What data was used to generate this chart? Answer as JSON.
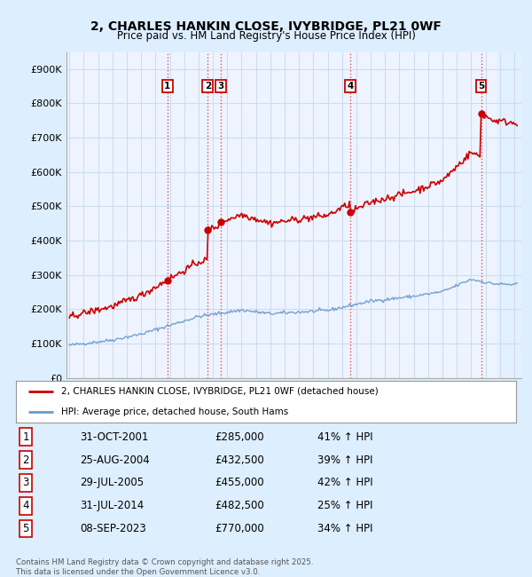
{
  "title": "2, CHARLES HANKIN CLOSE, IVYBRIDGE, PL21 0WF",
  "subtitle": "Price paid vs. HM Land Registry's House Price Index (HPI)",
  "ylim": [
    0,
    950000
  ],
  "yticks": [
    0,
    100000,
    200000,
    300000,
    400000,
    500000,
    600000,
    700000,
    800000,
    900000
  ],
  "ytick_labels": [
    "£0",
    "£100K",
    "£200K",
    "£300K",
    "£400K",
    "£500K",
    "£600K",
    "£700K",
    "£800K",
    "£900K"
  ],
  "xlim_start": 1994.8,
  "xlim_end": 2026.5,
  "hpi_color": "#6699cc",
  "price_color": "#cc0000",
  "background_color": "#ddeeff",
  "plot_bg_color": "#eef4ff",
  "grid_color": "#ccddee",
  "hatch_start": 2024.83,
  "sales": [
    {
      "num": 1,
      "date_num": 2001.83,
      "price": 285000,
      "label": "31-OCT-2001",
      "pct": "41%",
      "dir": "↑"
    },
    {
      "num": 2,
      "date_num": 2004.65,
      "price": 432500,
      "label": "25-AUG-2004",
      "pct": "39%",
      "dir": "↑"
    },
    {
      "num": 3,
      "date_num": 2005.57,
      "price": 455000,
      "label": "29-JUL-2005",
      "pct": "42%",
      "dir": "↑"
    },
    {
      "num": 4,
      "date_num": 2014.58,
      "price": 482500,
      "label": "31-JUL-2014",
      "pct": "25%",
      "dir": "↑"
    },
    {
      "num": 5,
      "date_num": 2023.69,
      "price": 770000,
      "label": "08-SEP-2023",
      "pct": "34%",
      "dir": "↑"
    }
  ],
  "legend_line1": "2, CHARLES HANKIN CLOSE, IVYBRIDGE, PL21 0WF (detached house)",
  "legend_line2": "HPI: Average price, detached house, South Hams",
  "footer1": "Contains HM Land Registry data © Crown copyright and database right 2025.",
  "footer2": "This data is licensed under the Open Government Licence v3.0.",
  "table_rows": [
    [
      "1",
      "31-OCT-2001",
      "£285,000",
      "41% ↑ HPI"
    ],
    [
      "2",
      "25-AUG-2004",
      "£432,500",
      "39% ↑ HPI"
    ],
    [
      "3",
      "29-JUL-2005",
      "£455,000",
      "42% ↑ HPI"
    ],
    [
      "4",
      "31-JUL-2014",
      "£482,500",
      "25% ↑ HPI"
    ],
    [
      "5",
      "08-SEP-2023",
      "£770,000",
      "34% ↑ HPI"
    ]
  ]
}
